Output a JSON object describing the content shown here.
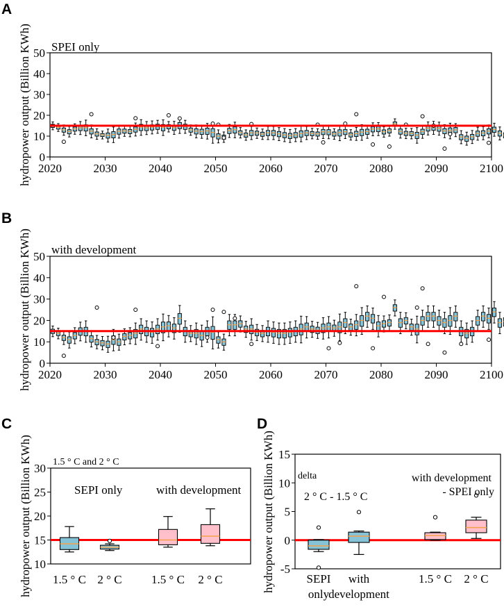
{
  "chart_data": [
    {
      "panel": "A",
      "type": "box",
      "title": "SPEI only",
      "ylabel": "hydropower output (Billion KWh)",
      "ylim": [
        0,
        50
      ],
      "yticks": [
        0,
        10,
        20,
        30,
        40,
        50
      ],
      "xlim": [
        2020,
        2100
      ],
      "xticks": [
        2020,
        2030,
        2040,
        2050,
        2060,
        2070,
        2080,
        2090,
        2100
      ],
      "reference_line": 15,
      "box_fill": "#87c3d6",
      "median_color": "#f4a24a",
      "line_color": "#ff0000",
      "series_start_year": 2020,
      "medians": [
        15.0,
        14.2,
        13.0,
        12.2,
        13.5,
        14.0,
        14.1,
        12.4,
        11.1,
        10.6,
        10.4,
        10.8,
        12.3,
        12.5,
        12.3,
        13.3,
        14.3,
        14.0,
        14.3,
        14.6,
        14.2,
        14.6,
        14.1,
        15.2,
        14.6,
        13.0,
        12.4,
        12.2,
        12.5,
        11.8,
        10.0,
        9.6,
        12.6,
        13.1,
        11.7,
        10.6,
        11.6,
        11.5,
        11.0,
        11.6,
        11.6,
        11.1,
        10.6,
        10.2,
        10.6,
        11.2,
        11.6,
        11.3,
        11.1,
        12.1,
        12.0,
        11.1,
        11.7,
        12.1,
        10.7,
        11.2,
        11.9,
        12.2,
        13.4,
        13.5,
        12.1,
        12.6,
        15.9,
        12.3,
        11.4,
        11.3,
        10.5,
        12.2,
        13.8,
        14.1,
        13.7,
        12.5,
        12.6,
        13.0,
        9.6,
        8.9,
        9.7,
        11.3,
        11.5,
        12.4,
        13.2,
        11.4,
        10.5,
        12.7,
        12.5,
        12.8,
        13.7,
        12.9,
        12.4,
        11.0,
        10.4,
        12.8,
        13.1,
        13.4
      ],
      "spreads": [
        1.5,
        1.5,
        2.0,
        2.0,
        2.0,
        2.5,
        3.0,
        2.5,
        2.0,
        1.5,
        2.5,
        3.0,
        2.5,
        2.0,
        2.0,
        2.5,
        3.0,
        2.5,
        2.5,
        2.5,
        3.0,
        2.0,
        2.5,
        3.0,
        2.5,
        2.0,
        2.5,
        2.5,
        3.0,
        4.0,
        2.5,
        2.0,
        2.5,
        3.0,
        2.0,
        2.0,
        2.5,
        2.0,
        2.0,
        2.5,
        2.5,
        2.5,
        2.5,
        2.5,
        2.5,
        3.0,
        2.5,
        2.0,
        2.0,
        2.5,
        2.5,
        2.0,
        3.0,
        2.5,
        2.0,
        2.5,
        3.0,
        2.5,
        2.5,
        2.5,
        2.0,
        2.0,
        2.0,
        2.5,
        2.0,
        2.0,
        3.0,
        2.5,
        2.5,
        2.5,
        2.5,
        2.5,
        3.0,
        2.5,
        2.5,
        2.5,
        2.5,
        2.5,
        2.5,
        2.5,
        2.5,
        2.5,
        2.5,
        2.5,
        2.5,
        2.5,
        2.5,
        2.0,
        2.5,
        2.5,
        2.5,
        2.5,
        2.0,
        2.0
      ],
      "outliers": [
        [
          2022,
          7.3
        ],
        [
          2027,
          20.5
        ],
        [
          2035,
          18.6
        ],
        [
          2041,
          20.0
        ],
        [
          2043,
          18.5
        ],
        [
          2049,
          16.0
        ],
        [
          2050,
          15.5
        ],
        [
          2051,
          9.2
        ],
        [
          2056,
          15.8
        ],
        [
          2068,
          15.5
        ],
        [
          2069,
          7.0
        ],
        [
          2073,
          16.0
        ],
        [
          2075,
          20.5
        ],
        [
          2078,
          6.0
        ],
        [
          2081,
          5.0
        ],
        [
          2084,
          15.5
        ],
        [
          2087,
          19.5
        ],
        [
          2089,
          15.0
        ],
        [
          2091,
          4.0
        ],
        [
          2092,
          11.0
        ],
        [
          2099,
          6.8
        ]
      ]
    },
    {
      "panel": "B",
      "type": "box",
      "title": "with development",
      "ylabel": "hydropower output (Billion KWh)",
      "ylim": [
        0,
        50
      ],
      "yticks": [
        0,
        10,
        20,
        30,
        40,
        50
      ],
      "xlim": [
        2020,
        2100
      ],
      "xticks": [
        2020,
        2030,
        2040,
        2050,
        2060,
        2070,
        2080,
        2090,
        2100
      ],
      "reference_line": 15,
      "box_fill": "#87c3d6",
      "median_color": "#f4a24a",
      "line_color": "#ff0000",
      "series_start_year": 2020,
      "medians": [
        15.0,
        14.0,
        12.0,
        11.0,
        13.0,
        15.0,
        15.0,
        11.5,
        10.0,
        9.5,
        9.0,
        11.0,
        10.0,
        12.5,
        13.0,
        14.0,
        16.0,
        15.0,
        14.5,
        16.0,
        17.0,
        17.5,
        16.5,
        21.0,
        15.0,
        14.0,
        14.0,
        13.0,
        15.0,
        14.5,
        11.0,
        10.0,
        18.0,
        18.0,
        18.5,
        16.0,
        16.0,
        14.5,
        14.0,
        15.0,
        14.5,
        14.0,
        14.0,
        14.5,
        15.0,
        16.0,
        17.0,
        16.0,
        15.5,
        16.5,
        17.0,
        16.5,
        17.0,
        19.0,
        17.0,
        18.0,
        20.0,
        22.0,
        21.0,
        17.5,
        18.5,
        19.0,
        26.0,
        19.0,
        20.0,
        17.0,
        16.0,
        20.0,
        22.0,
        22.0,
        20.0,
        19.0,
        20.0,
        22.0,
        15.0,
        14.0,
        15.0,
        20.0,
        22.0,
        21.0,
        24.0,
        19.0,
        19.5,
        22.0,
        23.0,
        24.0,
        20.0,
        22.0,
        24.0
      ],
      "spreads": [
        2,
        2,
        2.5,
        3,
        3,
        3.5,
        4,
        3,
        2.5,
        2.5,
        3,
        4,
        3,
        3,
        3,
        4,
        4,
        4,
        4,
        4,
        5,
        4,
        4,
        5,
        4,
        3,
        4,
        4,
        4,
        6,
        3,
        3,
        4,
        4,
        3,
        3,
        4,
        3,
        3,
        4,
        4,
        4,
        4,
        4,
        4,
        5,
        4,
        3,
        3,
        4,
        4,
        3,
        5,
        4,
        3,
        4,
        5,
        4,
        4,
        4,
        3,
        3,
        3,
        4,
        3,
        3,
        5,
        4,
        4,
        4,
        4,
        4,
        5,
        4,
        4,
        4,
        4,
        4,
        4,
        4,
        4,
        4,
        4,
        4,
        4,
        3,
        4,
        4,
        4
      ],
      "outliers": [
        [
          2022,
          3.5
        ],
        [
          2028,
          26.0
        ],
        [
          2031,
          12.0
        ],
        [
          2035,
          25.0
        ],
        [
          2039,
          8.0
        ],
        [
          2048,
          12.0
        ],
        [
          2049,
          25.0
        ],
        [
          2051,
          24.0
        ],
        [
          2053,
          21.0
        ],
        [
          2056,
          9.0
        ],
        [
          2070,
          7.0
        ],
        [
          2072,
          9.5
        ],
        [
          2075,
          36.0
        ],
        [
          2078,
          7.0
        ],
        [
          2080,
          31.0
        ],
        [
          2086,
          26.0
        ],
        [
          2087,
          35.0
        ],
        [
          2088,
          9.0
        ],
        [
          2091,
          5.0
        ],
        [
          2094,
          9.0
        ],
        [
          2099,
          11.0
        ]
      ]
    },
    {
      "panel": "C",
      "type": "box",
      "title": "1.5 ° C and 2 ° C",
      "ylabel": "hydropower output (Billion KWh)",
      "ylim": [
        10,
        30
      ],
      "yticks": [
        10,
        15,
        20,
        25,
        30
      ],
      "reference_line": 15,
      "group_labels": [
        "SEPI only",
        "with development"
      ],
      "category_labels": [
        "1.5 ° C",
        "2 ° C",
        "1.5 ° C",
        "2 ° C"
      ],
      "series": [
        {
          "name": "SEPI only 1.5 ° C",
          "whisker_low": 12.5,
          "q1": 13.0,
          "median": 14.2,
          "q3": 15.5,
          "whisker_high": 17.8,
          "outliers": [],
          "fill": "#87c3d6"
        },
        {
          "name": "SEPI only 2 ° C",
          "whisker_low": 12.8,
          "q1": 13.1,
          "median": 13.5,
          "q3": 13.9,
          "whisker_high": 14.2,
          "outliers": [
            14.8
          ],
          "fill": "#87c3d6"
        },
        {
          "name": "with development 1.5 ° C",
          "whisker_low": 13.5,
          "q1": 14.0,
          "median": 15.0,
          "q3": 17.2,
          "whisker_high": 19.9,
          "outliers": [],
          "fill": "#ffc0cb"
        },
        {
          "name": "with development 2 ° C",
          "whisker_low": 13.8,
          "q1": 14.3,
          "median": 15.8,
          "q3": 18.2,
          "whisker_high": 21.5,
          "outliers": [],
          "fill": "#ffc0cb"
        }
      ]
    },
    {
      "panel": "D",
      "type": "box",
      "title": "delta",
      "ylabel": "hydropower output (Billion KWh)",
      "ylim": [
        -5,
        15
      ],
      "yticks": [
        -5,
        0,
        5,
        10,
        15
      ],
      "reference_line": 0,
      "group_labels": [
        "2 ° C - 1.5 ° C",
        "with development\n- SPEI only"
      ],
      "category_labels": [
        "SEPI\nonly",
        "with\ndevelopment",
        "1.5 ° C",
        "2 ° C"
      ],
      "series": [
        {
          "name": "SEPI only",
          "whisker_low": -2.0,
          "q1": -1.6,
          "median": -1.0,
          "q3": 0.0,
          "whisker_high": 0.1,
          "outliers": [
            2.2,
            -4.8
          ],
          "fill": "#87c3d6"
        },
        {
          "name": "with development",
          "whisker_low": -2.5,
          "q1": -0.4,
          "median": 0.7,
          "q3": 1.4,
          "whisker_high": 1.6,
          "outliers": [
            4.9
          ],
          "fill": "#87c3d6"
        },
        {
          "name": "1.5 ° C",
          "whisker_low": 0.0,
          "q1": 0.1,
          "median": 0.8,
          "q3": 1.3,
          "whisker_high": 1.4,
          "outliers": [
            4.0
          ],
          "fill": "#ffc0cb"
        },
        {
          "name": "2 ° C",
          "whisker_low": 0.3,
          "q1": 1.3,
          "median": 2.2,
          "q3": 3.5,
          "whisker_high": 4.0,
          "outliers": [
            7.8
          ],
          "fill": "#ffc0cb"
        }
      ]
    }
  ],
  "panel_letters": [
    "A",
    "B",
    "C",
    "D"
  ]
}
